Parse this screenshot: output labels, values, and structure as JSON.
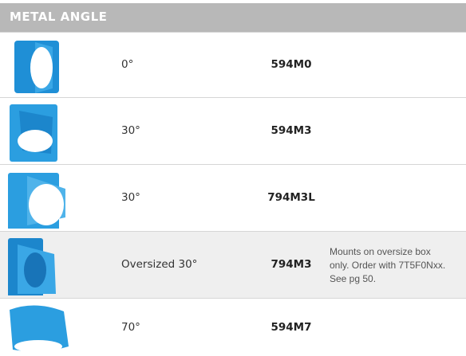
{
  "header": {
    "title": "METAL ANGLE"
  },
  "table": {
    "rows": [
      {
        "angle": "0°",
        "part": "594M0"
      },
      {
        "angle": "30°",
        "part": "594M3"
      },
      {
        "angle": "30°",
        "part": "794M3L"
      },
      {
        "angle": "Oversized 30°",
        "part": "794M3",
        "notes": [
          "Mounts on oversize box",
          "only. Order with 7T5F0Nxx.",
          "See pg 50."
        ]
      },
      {
        "angle": "70°",
        "part": "594M7"
      }
    ]
  }
}
